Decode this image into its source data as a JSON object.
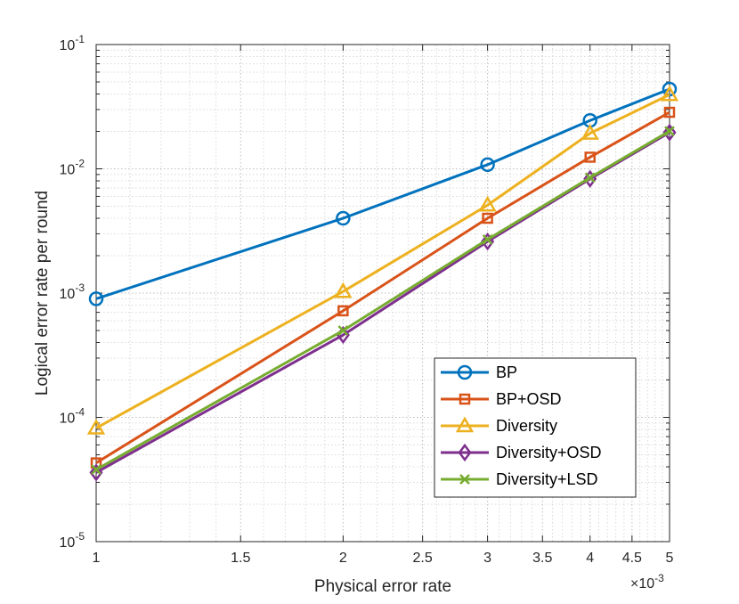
{
  "chart_data": {
    "type": "line",
    "title": "",
    "xlabel": "Physical error rate",
    "ylabel": "Logical error rate per round",
    "x_multiplier_label": "×10",
    "x_multiplier_exp": "-3",
    "xscale": "log",
    "yscale": "log",
    "xlim": [
      1,
      5
    ],
    "ylim": [
      1e-05,
      0.1
    ],
    "grid": true,
    "legend_position": "bottom-right",
    "x_ticks": [
      {
        "value": 1,
        "label": "1"
      },
      {
        "value": 1.5,
        "label": "1.5"
      },
      {
        "value": 2,
        "label": "2"
      },
      {
        "value": 2.5,
        "label": "2.5"
      },
      {
        "value": 3,
        "label": "3"
      },
      {
        "value": 3.5,
        "label": "3.5"
      },
      {
        "value": 4,
        "label": "4"
      },
      {
        "value": 4.5,
        "label": "4.5"
      },
      {
        "value": 5,
        "label": "5"
      }
    ],
    "y_ticks": [
      {
        "value": 1e-05,
        "base": "10",
        "exp": "-5"
      },
      {
        "value": 0.0001,
        "base": "10",
        "exp": "-4"
      },
      {
        "value": 0.001,
        "base": "10",
        "exp": "-3"
      },
      {
        "value": 0.01,
        "base": "10",
        "exp": "-2"
      },
      {
        "value": 0.1,
        "base": "10",
        "exp": "-1"
      }
    ],
    "x": [
      1,
      2,
      3,
      4,
      5
    ],
    "series": [
      {
        "name": "BP",
        "color": "#0072BD",
        "marker": "circle",
        "values": [
          0.0009,
          0.004,
          0.0108,
          0.0245,
          0.0438
        ]
      },
      {
        "name": "BP+OSD",
        "color": "#D95319",
        "marker": "square",
        "values": [
          4.3e-05,
          0.00072,
          0.004,
          0.0124,
          0.0285
        ]
      },
      {
        "name": "Diversity",
        "color": "#EDB120",
        "marker": "triangle",
        "values": [
          8.2e-05,
          0.00103,
          0.0051,
          0.0193,
          0.0395
        ]
      },
      {
        "name": "Diversity+OSD",
        "color": "#7E2F8E",
        "marker": "diamond",
        "values": [
          3.6e-05,
          0.00046,
          0.0026,
          0.0083,
          0.0196
        ]
      },
      {
        "name": "Diversity+LSD",
        "color": "#77AC30",
        "marker": "x",
        "values": [
          3.8e-05,
          0.0005,
          0.0027,
          0.0085,
          0.0201
        ]
      }
    ]
  }
}
